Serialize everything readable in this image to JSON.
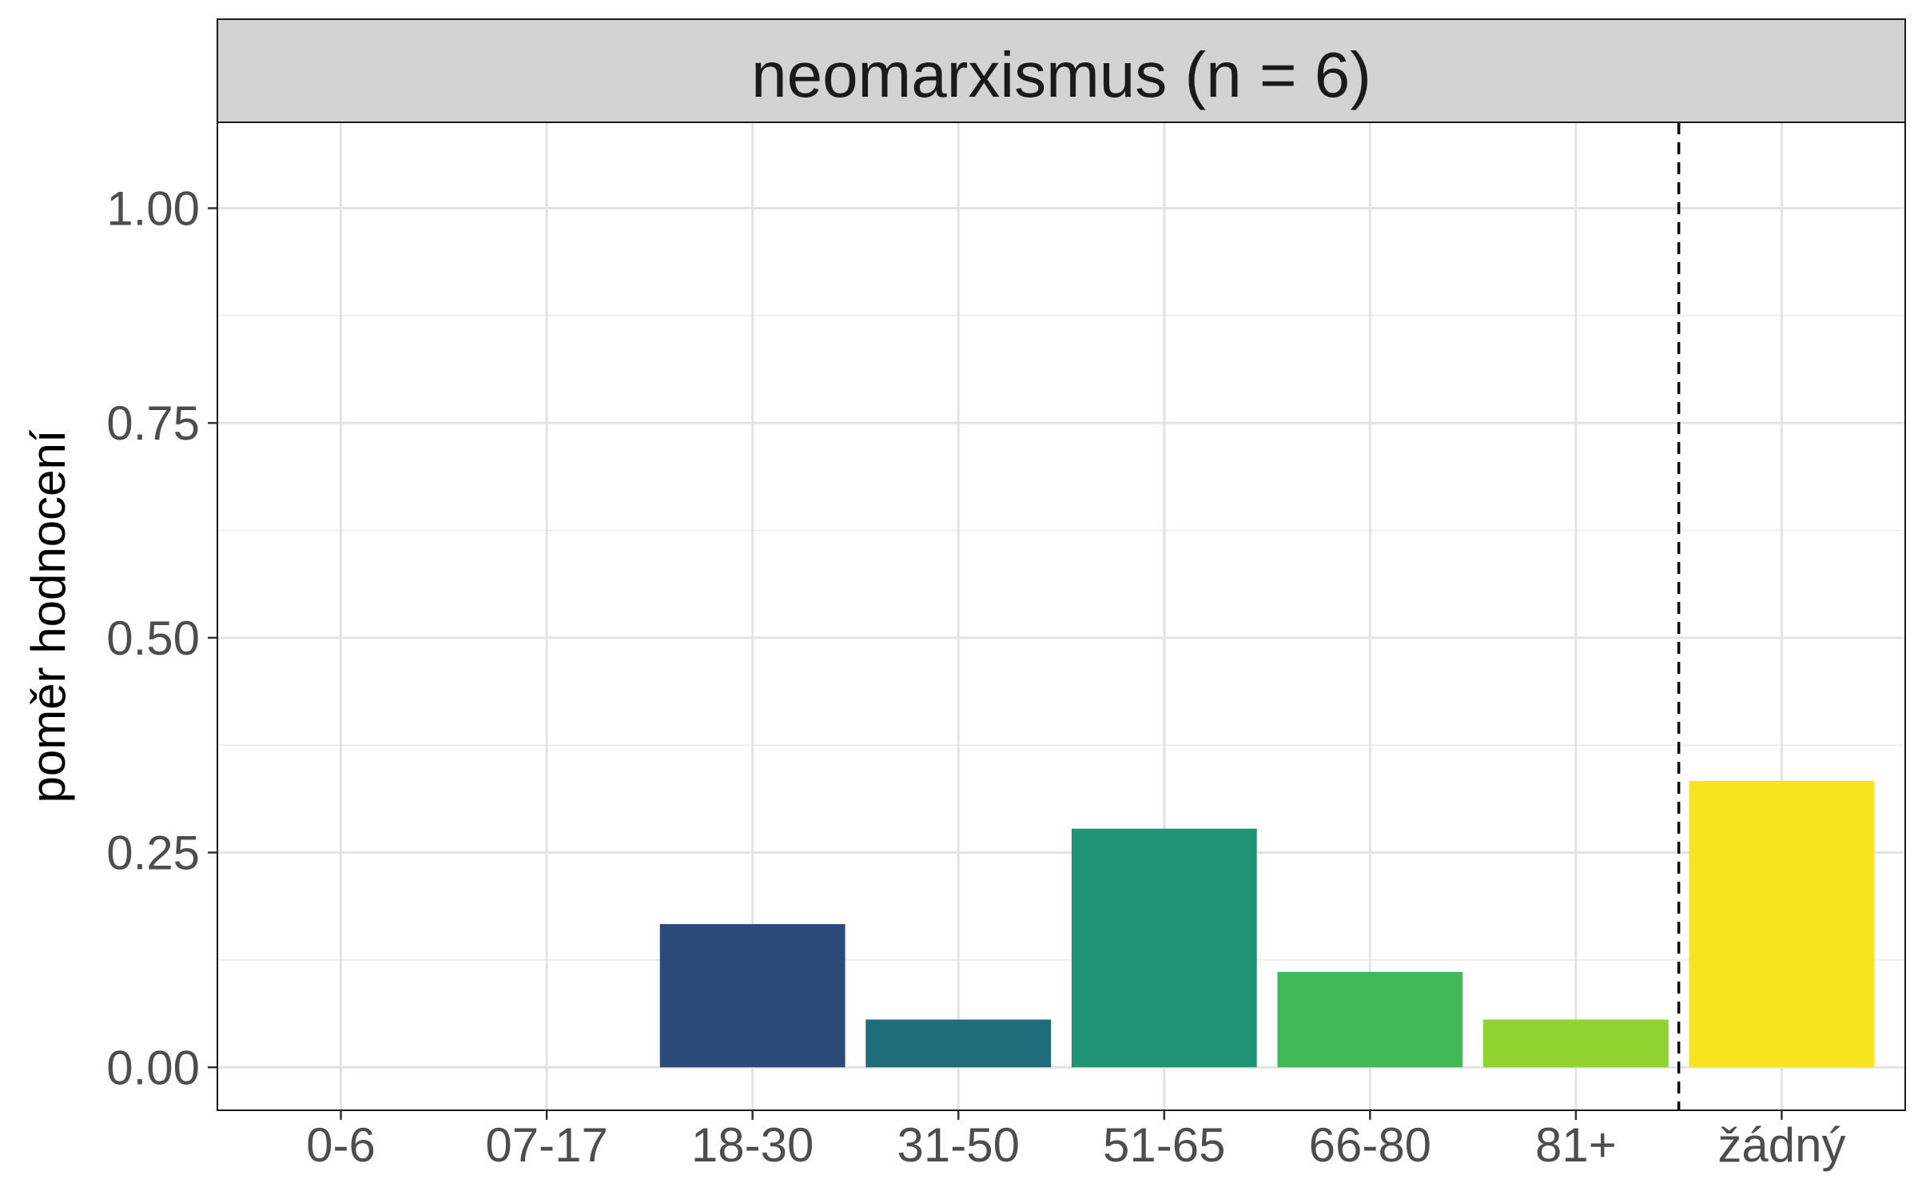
{
  "chart_data": {
    "type": "bar",
    "title": "neomarxismus (n = 6)",
    "xlabel": "",
    "ylabel": "poměr hodnocení",
    "categories": [
      "0-6",
      "07-17",
      "18-30",
      "31-50",
      "51-65",
      "66-80",
      "81+",
      "žádný"
    ],
    "values": [
      0,
      0,
      0.1667,
      0.0556,
      0.2778,
      0.1111,
      0.0556,
      0.3333
    ],
    "colors": [
      "#440154",
      "#46337E",
      "#2B4A7A",
      "#1F6C7B",
      "#209377",
      "#42B957",
      "#8FD32F",
      "#FAE31F"
    ],
    "ylim": [
      -0.05,
      1.1
    ],
    "yticks": [
      0,
      0.25,
      0.5,
      0.75,
      1
    ],
    "ytick_labels": [
      "0.00",
      "0.25",
      "0.50",
      "0.75",
      "1.00"
    ],
    "separator_after_category": "81+",
    "grid": true,
    "legend": "none",
    "strip_color": "#D3D3D3"
  }
}
